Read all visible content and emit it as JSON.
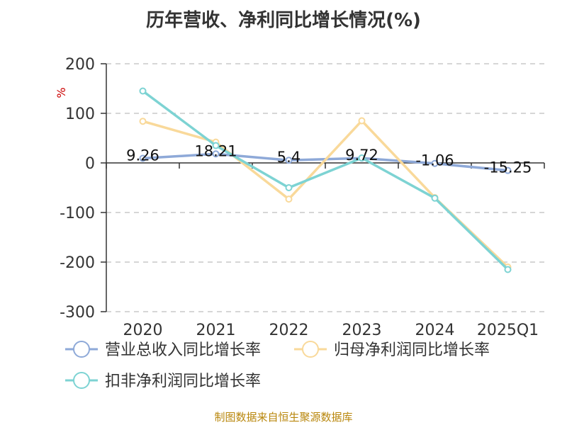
{
  "title": "历年营收、净利同比增长情况(%)",
  "source": "制图数据来自恒生聚源数据库",
  "chart_data": {
    "type": "line",
    "title": "历年营收、净利同比增长情况(%)",
    "ylabel": "%",
    "categories": [
      "2020",
      "2021",
      "2022",
      "2023",
      "2024",
      "2025Q1"
    ],
    "ylim": [
      -300,
      200
    ],
    "yticks": [
      200,
      100,
      0,
      -100,
      -200,
      -300
    ],
    "grid": true,
    "legend_position": "bottom",
    "series": [
      {
        "name": "营业总收入同比增长率",
        "color": "#8ea9d8",
        "values": [
          9.26,
          18.21,
          5.4,
          9.72,
          -1.06,
          -15.25
        ],
        "labels": [
          "9.26",
          "18.21",
          "5.4",
          "9.72",
          "-1.06",
          "-15.25"
        ]
      },
      {
        "name": "归母净利润同比增长率",
        "color": "#f9d99a",
        "values": [
          84,
          42,
          -73,
          85,
          -70,
          -210
        ]
      },
      {
        "name": "扣非净利润同比增长率",
        "color": "#7dd3d3",
        "values": [
          145,
          35,
          -50,
          10,
          -71,
          -215
        ]
      }
    ]
  }
}
